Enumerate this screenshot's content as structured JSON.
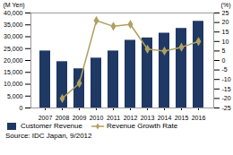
{
  "chart_data": {
    "type": "bar",
    "categories": [
      "2007",
      "2008",
      "2009",
      "2010",
      "2011",
      "2012",
      "2013",
      "2014",
      "2015",
      "2016"
    ],
    "series": [
      {
        "name": "Customer Revenue",
        "type": "bar",
        "color": "#1F3864",
        "values": [
          24000,
          19500,
          16500,
          21000,
          24000,
          28500,
          29500,
          31500,
          33500,
          36500
        ]
      },
      {
        "name": "Revenue Growth Rate",
        "type": "line",
        "color": "#b0a060",
        "marker": "diamond",
        "axis": "y2",
        "values": [
          null,
          -20,
          -12,
          21,
          18,
          19,
          6,
          5,
          7,
          10
        ]
      }
    ],
    "ylabel": "(M Yen)",
    "y2label": "(%)",
    "ylim": [
      0,
      40000
    ],
    "yticks": [
      0,
      {
        "value": 5000,
        "label": "5,000"
      },
      {
        "value": 10000,
        "label": "10,000"
      },
      {
        "value": 15000,
        "label": "15,000"
      },
      {
        "value": 20000,
        "label": "20,000"
      },
      {
        "value": 25000,
        "label": "25,000"
      },
      {
        "value": 30000,
        "label": "30,000"
      },
      {
        "value": 35000,
        "label": "35,000"
      },
      {
        "value": 40000,
        "label": "40,000"
      }
    ],
    "y2lim": [
      -25,
      25
    ],
    "y2ticks": [
      -25,
      -20,
      -15,
      -10,
      -5,
      0,
      5,
      10,
      15,
      20,
      25
    ],
    "grid": false,
    "legend": "bottom",
    "caption": "Source: IDC Japan, 9/2012"
  }
}
